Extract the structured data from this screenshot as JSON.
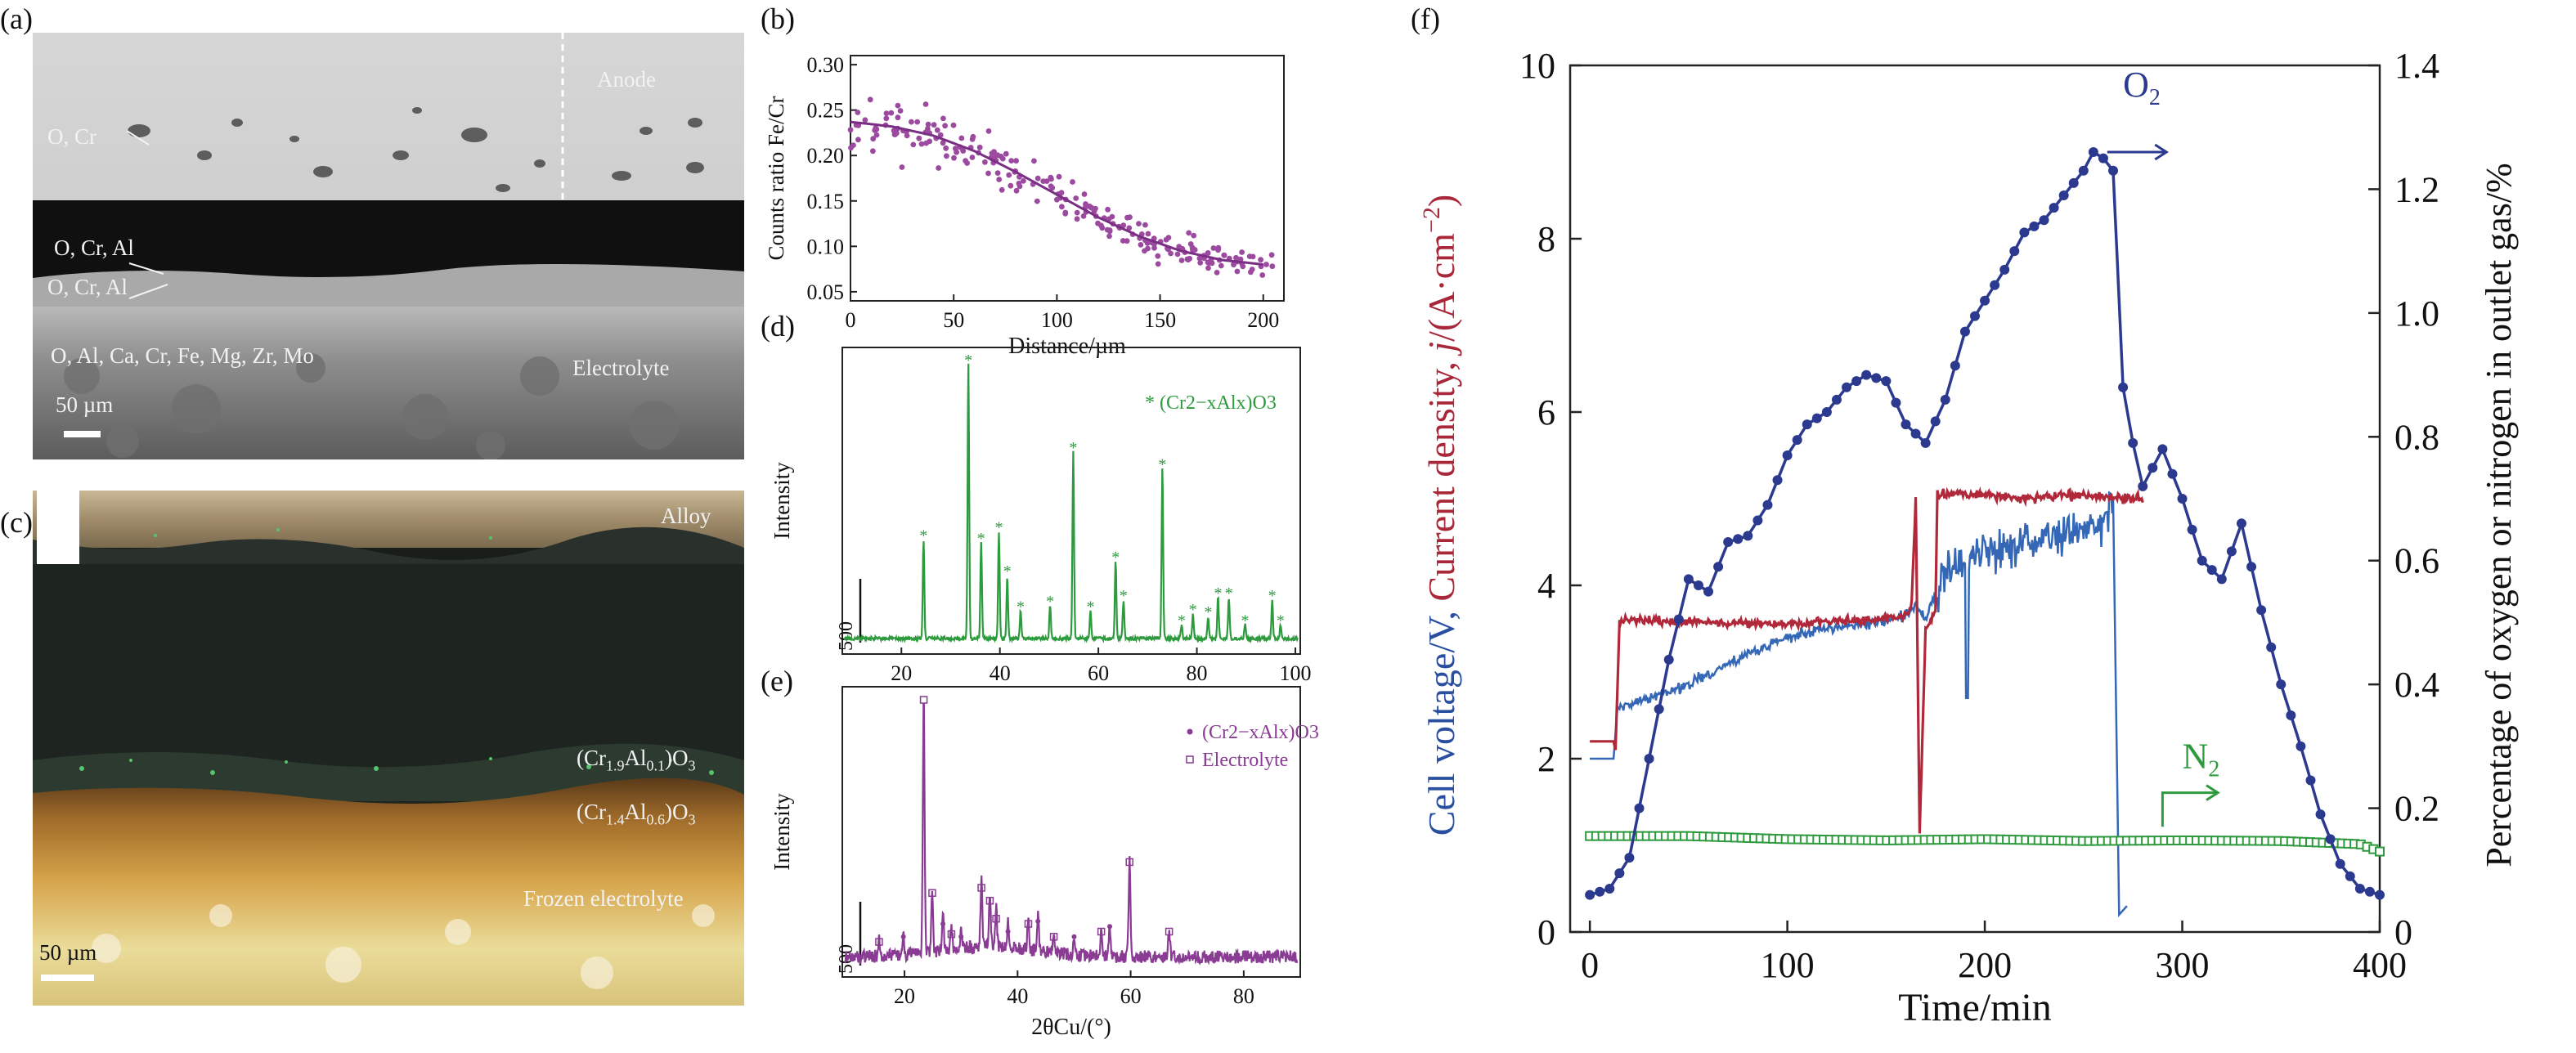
{
  "panels": {
    "a": {
      "tag": "(a)",
      "labels": {
        "anode": "Anode",
        "ocr": "O, Cr",
        "ocral1": "O, Cr, Al",
        "ocral2": "O, Cr, Al",
        "elements": "O, Al, Ca, Cr, Fe, Mg, Zr, Mo",
        "electrolyte": "Electrolyte",
        "scale": "50 µm"
      }
    },
    "c": {
      "tag": "(c)",
      "labels": {
        "alloy": "Alloy",
        "phase1": "(Cr1.9Al0.1)O3",
        "phase2": "(Cr1.4Al0.6)O3",
        "frozen": "Frozen electrolyte",
        "scale": "50 µm"
      }
    },
    "b_tag": "(b)",
    "d_tag": "(d)",
    "e_tag": "(e)",
    "f_tag": "(f)"
  },
  "chart_data": [
    {
      "id": "b",
      "type": "scatter",
      "xlabel": "Distance/µm",
      "ylabel": "Counts ratio Fe/Cr",
      "xlim": [
        0,
        210
      ],
      "ylim": [
        0.04,
        0.31
      ],
      "xticks": [
        0,
        50,
        100,
        150,
        200
      ],
      "yticks": [
        0.05,
        0.1,
        0.15,
        0.2,
        0.25,
        0.3
      ],
      "series": [
        {
          "kind": "points",
          "color": "#9c4aa0",
          "x_range": [
            0,
            205
          ],
          "n": 230
        },
        {
          "kind": "fit",
          "color": "#7a2f85",
          "x": [
            0,
            20,
            40,
            60,
            80,
            100,
            120,
            140,
            160,
            180,
            200
          ],
          "y": [
            0.237,
            0.232,
            0.222,
            0.205,
            0.182,
            0.157,
            0.132,
            0.111,
            0.095,
            0.085,
            0.08
          ]
        }
      ]
    },
    {
      "id": "d",
      "type": "line",
      "xlabel": "",
      "ylabel": "Intensity",
      "xlim": [
        8,
        101
      ],
      "xticks": [
        20,
        40,
        60,
        80,
        100
      ],
      "scale_bar": "500",
      "legend": "(Cr2−xAlx)O3",
      "color": "#2e9a3e",
      "peaks": [
        {
          "x": 24.5,
          "h": 0.36
        },
        {
          "x": 33.6,
          "h": 1.0
        },
        {
          "x": 36.2,
          "h": 0.35
        },
        {
          "x": 39.8,
          "h": 0.39
        },
        {
          "x": 41.5,
          "h": 0.23
        },
        {
          "x": 44.2,
          "h": 0.1
        },
        {
          "x": 50.2,
          "h": 0.12
        },
        {
          "x": 54.9,
          "h": 0.68
        },
        {
          "x": 58.4,
          "h": 0.1
        },
        {
          "x": 63.5,
          "h": 0.28
        },
        {
          "x": 65.1,
          "h": 0.14
        },
        {
          "x": 73.0,
          "h": 0.62
        },
        {
          "x": 76.9,
          "h": 0.05
        },
        {
          "x": 79.2,
          "h": 0.09
        },
        {
          "x": 82.3,
          "h": 0.08
        },
        {
          "x": 84.3,
          "h": 0.15
        },
        {
          "x": 86.5,
          "h": 0.15
        },
        {
          "x": 89.8,
          "h": 0.05
        },
        {
          "x": 95.3,
          "h": 0.14
        },
        {
          "x": 97.0,
          "h": 0.05
        }
      ]
    },
    {
      "id": "e",
      "type": "line",
      "xlabel": "2θCu/(°)",
      "ylabel": "Intensity",
      "xlim": [
        9,
        90
      ],
      "xticks": [
        20,
        40,
        60,
        80
      ],
      "scale_bar": "500",
      "legend": [
        "(Cr2−xAlx)O3",
        "Electrolyte"
      ],
      "color": "#8a3b94",
      "peaks": [
        {
          "x": 15.5,
          "h": 0.06
        },
        {
          "x": 19.8,
          "h": 0.08
        },
        {
          "x": 23.4,
          "h": 1.0
        },
        {
          "x": 24.9,
          "h": 0.25
        },
        {
          "x": 26.8,
          "h": 0.13
        },
        {
          "x": 28.3,
          "h": 0.09
        },
        {
          "x": 30.0,
          "h": 0.08
        },
        {
          "x": 33.6,
          "h": 0.27
        },
        {
          "x": 35.1,
          "h": 0.22
        },
        {
          "x": 36.2,
          "h": 0.15
        },
        {
          "x": 38.3,
          "h": 0.1
        },
        {
          "x": 41.9,
          "h": 0.13
        },
        {
          "x": 43.6,
          "h": 0.14
        },
        {
          "x": 46.4,
          "h": 0.08
        },
        {
          "x": 50.0,
          "h": 0.08
        },
        {
          "x": 54.8,
          "h": 0.1
        },
        {
          "x": 56.3,
          "h": 0.12
        },
        {
          "x": 59.8,
          "h": 0.37
        },
        {
          "x": 66.8,
          "h": 0.1
        }
      ]
    },
    {
      "id": "f",
      "type": "line",
      "xlabel": "Time/min",
      "ylabel_left": "Cell voltage/V, Current density, j/(A·cm⁻²)",
      "ylabel_left_parts": [
        "Cell voltage/V,",
        " Current density, ",
        "j",
        "/(A·cm",
        "−2",
        ")"
      ],
      "ylabel_right": "Percentage of oxygen or nitrogen in outlet gas/%",
      "xlim": [
        -10,
        400
      ],
      "ylim_left": [
        0,
        10
      ],
      "ylim_right": [
        0,
        1.4
      ],
      "xticks": [
        0,
        100,
        200,
        300,
        400
      ],
      "yticks_left": [
        0,
        2,
        4,
        6,
        8,
        10
      ],
      "yticks_right": [
        0,
        0.2,
        0.4,
        0.6,
        0.8,
        1.0,
        1.2,
        1.4
      ],
      "annotations": {
        "o2": "O2",
        "n2": "N2"
      },
      "series": [
        {
          "name": "O2",
          "axis": "right",
          "color": "#2b3a8f",
          "x": [
            0,
            10,
            20,
            30,
            40,
            50,
            60,
            70,
            80,
            90,
            100,
            110,
            120,
            130,
            140,
            150,
            160,
            170,
            180,
            190,
            200,
            210,
            220,
            230,
            240,
            250,
            255,
            260,
            265,
            270,
            275,
            280,
            290,
            300,
            310,
            320,
            330,
            340,
            350,
            360,
            370,
            380,
            390,
            400
          ],
          "y": [
            0.06,
            0.07,
            0.12,
            0.28,
            0.44,
            0.57,
            0.55,
            0.63,
            0.64,
            0.69,
            0.77,
            0.82,
            0.84,
            0.88,
            0.9,
            0.89,
            0.82,
            0.79,
            0.86,
            0.97,
            1.02,
            1.07,
            1.13,
            1.15,
            1.19,
            1.23,
            1.26,
            1.25,
            1.23,
            0.88,
            0.79,
            0.72,
            0.78,
            0.7,
            0.6,
            0.57,
            0.66,
            0.52,
            0.4,
            0.3,
            0.19,
            0.11,
            0.07,
            0.06
          ]
        },
        {
          "name": "N2",
          "axis": "right",
          "color": "#2e9a3e",
          "x": [
            0,
            50,
            100,
            150,
            200,
            250,
            300,
            350,
            390,
            400
          ],
          "y": [
            0.155,
            0.155,
            0.15,
            0.148,
            0.15,
            0.147,
            0.148,
            0.147,
            0.142,
            0.13
          ]
        },
        {
          "name": "Current density",
          "axis": "left",
          "color": "#b0283a",
          "x": [
            0,
            12,
            13,
            15,
            50,
            100,
            140,
            160,
            163,
            165,
            167,
            170,
            175,
            176,
            200,
            220,
            240,
            260,
            280
          ],
          "y": [
            2.2,
            2.2,
            2.1,
            3.6,
            3.58,
            3.55,
            3.6,
            3.65,
            3.8,
            5.0,
            1.1,
            3.5,
            3.7,
            5.05,
            5.05,
            5.0,
            5.05,
            5.02,
            5.0
          ]
        },
        {
          "name": "Cell voltage",
          "axis": "left",
          "color": "#3467b5",
          "x": [
            0,
            12,
            14,
            30,
            50,
            80,
            100,
            120,
            140,
            160,
            165,
            170,
            175,
            180,
            200,
            220,
            240,
            260,
            265,
            268,
            272
          ],
          "y": [
            2.0,
            2.0,
            2.6,
            2.7,
            2.85,
            3.2,
            3.4,
            3.5,
            3.55,
            3.65,
            3.8,
            3.6,
            3.9,
            4.2,
            4.4,
            4.5,
            4.6,
            4.7,
            5.0,
            0.2,
            0.3
          ]
        }
      ]
    }
  ]
}
